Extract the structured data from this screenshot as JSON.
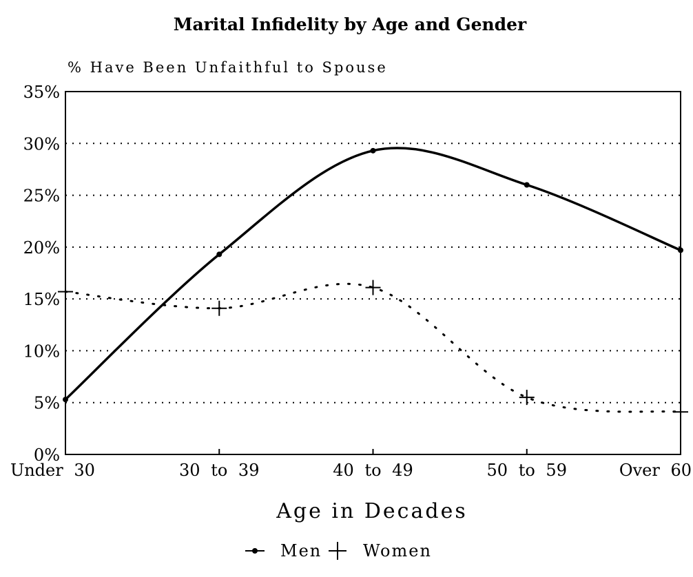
{
  "chart_data": {
    "type": "line",
    "title": "Marital Infidelity by Age and Gender",
    "ylabel": "% Have Been Unfaithful to Spouse",
    "xlabel": "Age in Decades",
    "categories": [
      "Under 30",
      "30 to 39",
      "40 to 49",
      "50 to 59",
      "Over 60"
    ],
    "ylim": [
      0,
      35
    ],
    "yticks": [
      0,
      5,
      10,
      15,
      20,
      25,
      30,
      35
    ],
    "ytick_labels": [
      "0%",
      "5%",
      "10%",
      "15%",
      "20%",
      "25%",
      "30%",
      "35%"
    ],
    "grid": "horizontal dotted",
    "legend_position": "bottom",
    "series": [
      {
        "name": "Men",
        "values": [
          5.3,
          19.3,
          29.3,
          26.0,
          19.7
        ],
        "color": "#000000",
        "line_style": "solid",
        "marker": "dot"
      },
      {
        "name": "Women",
        "values": [
          15.7,
          14.1,
          16.1,
          5.5,
          4.1
        ],
        "color": "#000000",
        "line_style": "dotted",
        "marker": "plus"
      }
    ]
  }
}
